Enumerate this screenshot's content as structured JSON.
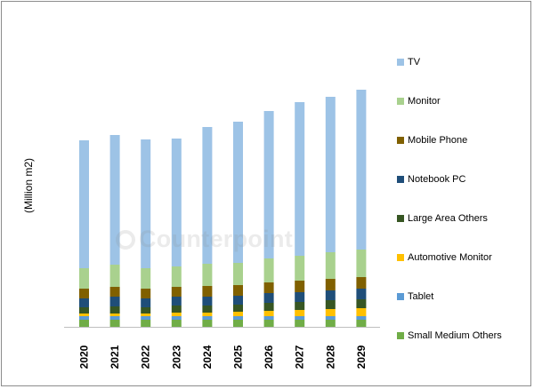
{
  "chart_data": {
    "type": "bar",
    "stacked": true,
    "title": "",
    "xlabel": "",
    "ylabel": "(Million m2)",
    "categories": [
      "2020",
      "2021",
      "2022",
      "2023",
      "2024",
      "2025",
      "2026",
      "2027",
      "2028",
      "2029"
    ],
    "y_axis_visible": false,
    "grid": false,
    "legend_position": "right",
    "series": [
      {
        "name": "Small Medium Others",
        "color": "#70AD47",
        "values": [
          8,
          8,
          8,
          8,
          8,
          8,
          8,
          8,
          8,
          8
        ]
      },
      {
        "name": "Tablet",
        "color": "#5B9BD5",
        "values": [
          4,
          4,
          4,
          4,
          4,
          4,
          4,
          4,
          4,
          4
        ]
      },
      {
        "name": "Automotive Monitor",
        "color": "#FFC000",
        "values": [
          3,
          3,
          3,
          4,
          4,
          5,
          6,
          7,
          8,
          9
        ]
      },
      {
        "name": "Large Area Others",
        "color": "#375623",
        "values": [
          7,
          8,
          7,
          8,
          8,
          8,
          9,
          9,
          10,
          10
        ]
      },
      {
        "name": "Notebook PC",
        "color": "#1F4E79",
        "values": [
          10,
          11,
          10,
          10,
          10,
          10,
          11,
          11,
          11,
          12
        ]
      },
      {
        "name": "Mobile Phone",
        "color": "#806000",
        "values": [
          11,
          11,
          11,
          11,
          12,
          12,
          12,
          13,
          13,
          13
        ]
      },
      {
        "name": "Monitor",
        "color": "#A9D18E",
        "values": [
          23,
          25,
          23,
          23,
          25,
          25,
          27,
          28,
          30,
          31
        ]
      },
      {
        "name": "TV",
        "color": "#9DC3E6",
        "values": [
          144,
          146,
          145,
          144,
          154,
          159,
          166,
          173,
          175,
          180
        ]
      }
    ]
  },
  "watermark": {
    "text": "Counterpoint"
  }
}
